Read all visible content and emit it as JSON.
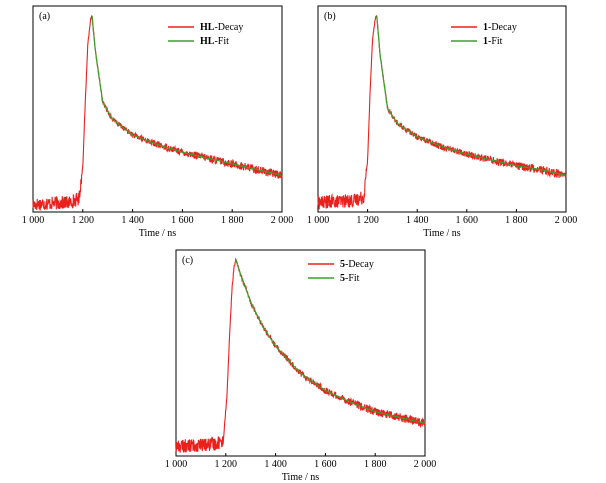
{
  "chart_data": [
    {
      "type": "line",
      "panel_label": "(a)",
      "xlabel": "Time / ns",
      "ylabel": "",
      "xlim": [
        1000,
        2000
      ],
      "xticks": [
        1000,
        1200,
        1400,
        1600,
        1800,
        2000
      ],
      "xtick_labels": [
        "1 000",
        "1 200",
        "1 400",
        "1 600",
        "1 800",
        "2 000"
      ],
      "yticks_shown": false,
      "legend_position": "top-right",
      "series": [
        {
          "name_bold": "HL",
          "name_rest": "-Decay",
          "color": "#e8211d",
          "x": [
            1000,
            1150,
            1185,
            1200,
            1210,
            1220,
            1230,
            1237,
            1250,
            1280,
            1320,
            1400,
            1500,
            1600,
            1700,
            1800,
            1900,
            2000
          ],
          "y": [
            0.02,
            0.03,
            0.05,
            0.22,
            0.55,
            0.85,
            0.97,
            1.0,
            0.82,
            0.55,
            0.46,
            0.38,
            0.33,
            0.29,
            0.26,
            0.23,
            0.2,
            0.17
          ]
        },
        {
          "name_bold": "HL",
          "name_rest": "-Fit",
          "color": "#3aa12c",
          "x": [
            1237,
            1250,
            1280,
            1320,
            1400,
            1500,
            1600,
            1700,
            1800,
            1900,
            2000
          ],
          "y": [
            1.0,
            0.82,
            0.55,
            0.46,
            0.38,
            0.33,
            0.29,
            0.26,
            0.23,
            0.2,
            0.17
          ]
        }
      ]
    },
    {
      "type": "line",
      "panel_label": "(b)",
      "xlabel": "Time / ns",
      "ylabel": "",
      "xlim": [
        1000,
        2000
      ],
      "xticks": [
        1000,
        1200,
        1400,
        1600,
        1800,
        2000
      ],
      "xtick_labels": [
        "1 000",
        "1 200",
        "1 400",
        "1 600",
        "1 800",
        "2 000"
      ],
      "yticks_shown": false,
      "legend_position": "top-right",
      "series": [
        {
          "name_bold": "1",
          "name_rest": "-Decay",
          "color": "#e8211d",
          "x": [
            1000,
            1150,
            1185,
            1200,
            1210,
            1220,
            1230,
            1237,
            1250,
            1280,
            1320,
            1400,
            1500,
            1600,
            1700,
            1800,
            1900,
            2000
          ],
          "y": [
            0.03,
            0.04,
            0.06,
            0.25,
            0.6,
            0.88,
            0.98,
            1.0,
            0.8,
            0.52,
            0.44,
            0.37,
            0.32,
            0.28,
            0.25,
            0.22,
            0.2,
            0.17
          ]
        },
        {
          "name_bold": "1",
          "name_rest": "-Fit",
          "color": "#3aa12c",
          "x": [
            1237,
            1250,
            1280,
            1320,
            1400,
            1500,
            1600,
            1700,
            1800,
            1900,
            2000
          ],
          "y": [
            1.0,
            0.8,
            0.52,
            0.44,
            0.37,
            0.32,
            0.28,
            0.25,
            0.22,
            0.2,
            0.17
          ]
        }
      ]
    },
    {
      "type": "line",
      "panel_label": "(c)",
      "xlabel": "Time / ns",
      "ylabel": "",
      "xlim": [
        1000,
        2000
      ],
      "xticks": [
        1000,
        1200,
        1400,
        1600,
        1800,
        2000
      ],
      "xtick_labels": [
        "1 000",
        "1 200",
        "1 400",
        "1 600",
        "1 800",
        "2 000"
      ],
      "yticks_shown": false,
      "legend_position": "top-right",
      "series": [
        {
          "name_bold": "5",
          "name_rest": "-Decay",
          "color": "#e8211d",
          "x": [
            1000,
            1150,
            1190,
            1205,
            1215,
            1225,
            1233,
            1240,
            1260,
            1300,
            1350,
            1400,
            1500,
            1600,
            1700,
            1800,
            1900,
            2000
          ],
          "y": [
            0.03,
            0.04,
            0.06,
            0.3,
            0.6,
            0.85,
            0.96,
            1.0,
            0.92,
            0.78,
            0.65,
            0.55,
            0.41,
            0.32,
            0.26,
            0.21,
            0.18,
            0.15
          ]
        },
        {
          "name_bold": "5",
          "name_rest": "-Fit",
          "color": "#3aa12c",
          "x": [
            1240,
            1260,
            1300,
            1350,
            1400,
            1500,
            1600,
            1700,
            1800,
            1900,
            2000
          ],
          "y": [
            1.0,
            0.92,
            0.78,
            0.65,
            0.55,
            0.41,
            0.32,
            0.26,
            0.21,
            0.18,
            0.15
          ]
        }
      ]
    }
  ]
}
